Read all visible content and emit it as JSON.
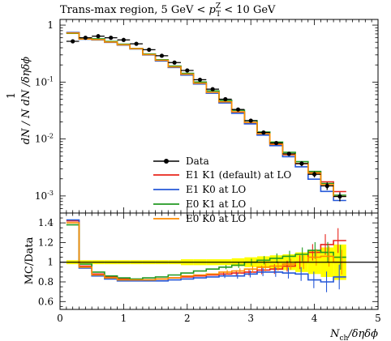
{
  "chart_data": {
    "type": "line",
    "title": "Trans-max region, 5 GeV < p_T^Z < 10 GeV",
    "title_parts": {
      "pre": "Trans-max region, 5 GeV < ",
      "sym": "p",
      "sub": "T",
      "sup": "Z",
      "post": " < 10 GeV"
    },
    "xlabel": "N_ch/δηδϕ",
    "xlabel_parts": {
      "sym": "N",
      "sub": "ch",
      "post": "/δηδϕ"
    },
    "ylabel_main": "1/N_ev dN_ev/dN_ch/δηδϕ",
    "ylabel_ratio": "MC/Data",
    "x_ticks": [
      "0",
      "1",
      "2",
      "3",
      "4",
      "5"
    ],
    "main_y_ticks": [
      "1",
      "10^-1",
      "10^-2",
      "10^-3"
    ],
    "ratio_y_ticks": [
      "0.6",
      "0.8",
      "1",
      "1.2",
      "1.4"
    ],
    "xlim": [
      0,
      5
    ],
    "main_ylim_log10": [
      -3.3,
      0.1
    ],
    "ratio_ylim": [
      0.52,
      1.5
    ],
    "main_y_scale": "log",
    "legend_position": "lower-left",
    "x_edges": [
      0.1,
      0.3,
      0.5,
      0.7,
      0.9,
      1.1,
      1.3,
      1.5,
      1.7,
      1.9,
      2.1,
      2.3,
      2.5,
      2.7,
      2.9,
      3.1,
      3.3,
      3.5,
      3.7,
      3.9,
      4.1,
      4.3,
      4.5
    ],
    "data": {
      "name": "Data",
      "x": [
        0.2,
        0.4,
        0.6,
        0.8,
        1.0,
        1.2,
        1.4,
        1.6,
        1.8,
        2.0,
        2.2,
        2.4,
        2.6,
        2.8,
        3.0,
        3.2,
        3.4,
        3.6,
        3.8,
        4.0,
        4.2,
        4.4
      ],
      "y": [
        0.52,
        0.6,
        0.64,
        0.6,
        0.55,
        0.47,
        0.37,
        0.29,
        0.22,
        0.16,
        0.11,
        0.075,
        0.05,
        0.033,
        0.021,
        0.013,
        0.0085,
        0.0055,
        0.0037,
        0.0024,
        0.0015,
        0.00098
      ],
      "rel_err": [
        0.02,
        0.02,
        0.02,
        0.02,
        0.02,
        0.02,
        0.02,
        0.02,
        0.02,
        0.03,
        0.03,
        0.03,
        0.03,
        0.04,
        0.05,
        0.06,
        0.07,
        0.08,
        0.1,
        0.12,
        0.15,
        0.18
      ]
    },
    "series": [
      {
        "name": "E1 K1 (default) at LO",
        "color": "#e8241c",
        "ratio": [
          1.42,
          0.96,
          0.88,
          0.85,
          0.83,
          0.82,
          0.82,
          0.83,
          0.84,
          0.85,
          0.86,
          0.87,
          0.88,
          0.89,
          0.9,
          0.92,
          0.93,
          0.96,
          1.0,
          1.1,
          1.18,
          1.22
        ]
      },
      {
        "name": "E1 K0 at LO",
        "color": "#2658d8",
        "ratio": [
          1.43,
          0.94,
          0.86,
          0.83,
          0.81,
          0.81,
          0.81,
          0.81,
          0.82,
          0.83,
          0.84,
          0.85,
          0.86,
          0.86,
          0.88,
          0.9,
          0.9,
          0.89,
          0.88,
          0.82,
          0.8,
          0.85
        ]
      },
      {
        "name": "E0 K1 at LO",
        "color": "#229a22",
        "ratio": [
          1.38,
          0.98,
          0.9,
          0.86,
          0.84,
          0.83,
          0.84,
          0.85,
          0.87,
          0.89,
          0.91,
          0.93,
          0.95,
          0.97,
          1.0,
          1.02,
          1.04,
          1.06,
          1.08,
          1.12,
          1.1,
          1.05
        ]
      },
      {
        "name": "E0 K0 at LO",
        "color": "#ff8c00",
        "ratio": [
          1.4,
          0.95,
          0.87,
          0.84,
          0.82,
          0.82,
          0.82,
          0.83,
          0.84,
          0.86,
          0.87,
          0.88,
          0.9,
          0.91,
          0.93,
          0.95,
          0.96,
          0.98,
          1.0,
          1.05,
          1.06,
          1.0
        ]
      }
    ],
    "uncertainty_band_color": "#ffff00",
    "data_color": "#000000"
  },
  "legend": {
    "data": "Data",
    "s0": "E1 K1 (default) at LO",
    "s1": "E1 K0 at LO",
    "s2": "E0 K1 at LO",
    "s3": "E0 K0 at LO"
  }
}
